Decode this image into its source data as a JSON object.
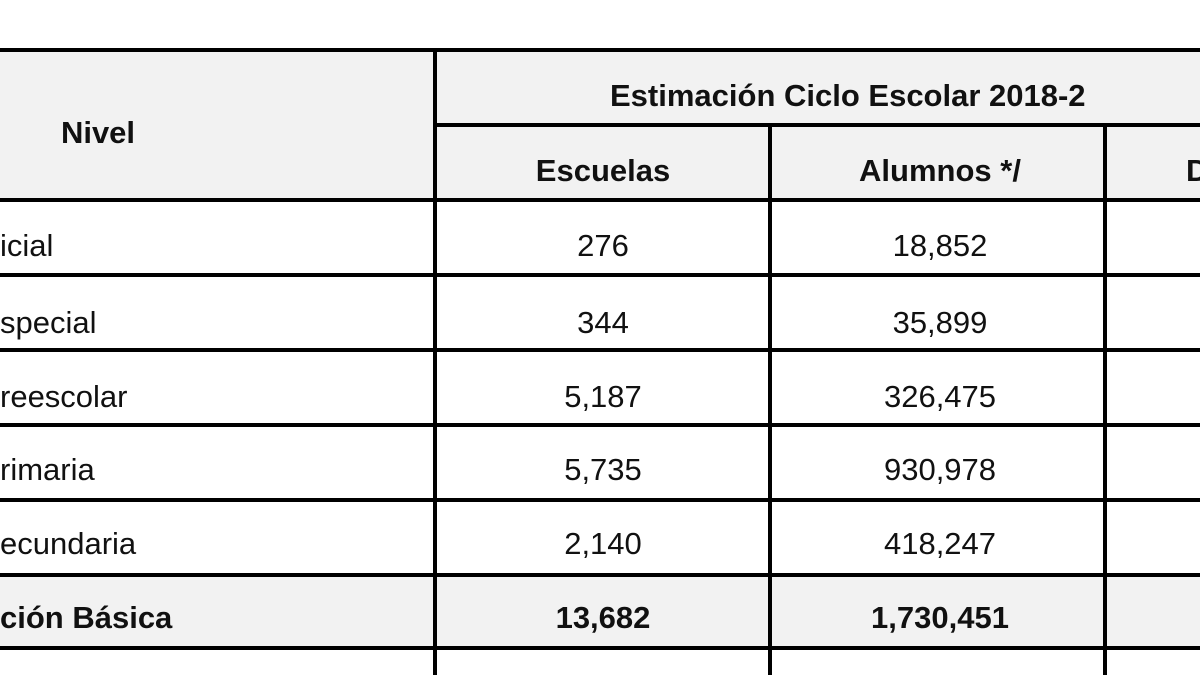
{
  "table": {
    "header": {
      "nivel": "Nivel",
      "group": "Estimación Ciclo Escolar 2018-2",
      "columns": [
        "Escuelas",
        "Alumnos */",
        "D"
      ]
    },
    "rows": [
      [
        "icial",
        "276",
        "18,852"
      ],
      [
        "special",
        "344",
        "35,899"
      ],
      [
        "reescolar",
        "5,187",
        "326,475"
      ],
      [
        "rimaria",
        "5,735",
        "930,978"
      ],
      [
        "ecundaria",
        "2,140",
        "418,247"
      ]
    ],
    "total": [
      "ción Básica",
      "13,682",
      "1,730,451"
    ]
  }
}
